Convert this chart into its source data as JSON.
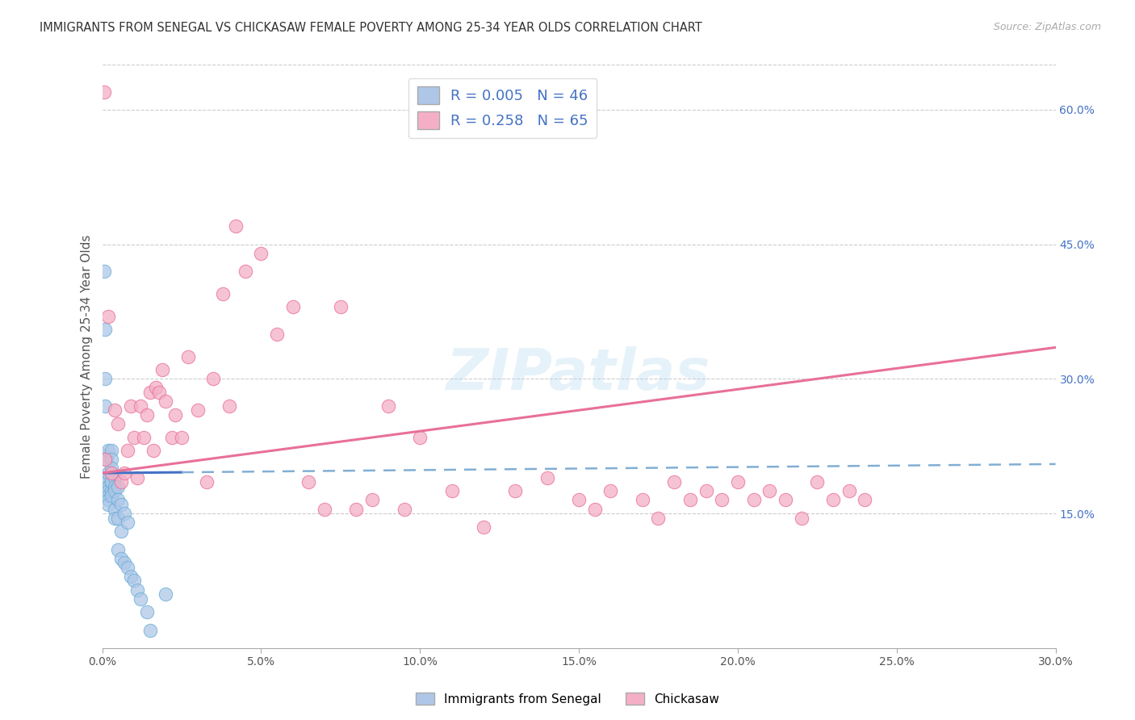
{
  "title": "IMMIGRANTS FROM SENEGAL VS CHICKASAW FEMALE POVERTY AMONG 25-34 YEAR OLDS CORRELATION CHART",
  "source": "Source: ZipAtlas.com",
  "ylabel": "Female Poverty Among 25-34 Year Olds",
  "xlim": [
    0.0,
    0.3
  ],
  "ylim": [
    0.0,
    0.65
  ],
  "xticks": [
    0.0,
    0.05,
    0.1,
    0.15,
    0.2,
    0.25,
    0.3
  ],
  "xtick_labels": [
    "0.0%",
    "5.0%",
    "10.0%",
    "15.0%",
    "20.0%",
    "25.0%",
    "30.0%"
  ],
  "yticks_right": [
    0.15,
    0.3,
    0.45,
    0.6
  ],
  "ytick_labels_right": [
    "15.0%",
    "30.0%",
    "45.0%",
    "60.0%"
  ],
  "grid_color": "#cccccc",
  "background_color": "#ffffff",
  "blue_color": "#6baed6",
  "blue_fill": "#aec7e8",
  "pink_color": "#e87098",
  "pink_fill": "#f4afc6",
  "blue_R": 0.005,
  "blue_N": 46,
  "pink_R": 0.258,
  "pink_N": 65,
  "legend_label_blue": "Immigrants from Senegal",
  "legend_label_pink": "Chickasaw",
  "watermark": "ZIPatlas",
  "blue_scatter_x": [
    0.0005,
    0.001,
    0.001,
    0.001,
    0.001,
    0.001,
    0.0015,
    0.0015,
    0.002,
    0.002,
    0.002,
    0.002,
    0.002,
    0.002,
    0.002,
    0.003,
    0.003,
    0.003,
    0.003,
    0.003,
    0.003,
    0.003,
    0.003,
    0.004,
    0.004,
    0.004,
    0.004,
    0.004,
    0.005,
    0.005,
    0.005,
    0.005,
    0.006,
    0.006,
    0.006,
    0.007,
    0.007,
    0.008,
    0.008,
    0.009,
    0.01,
    0.011,
    0.012,
    0.014,
    0.015,
    0.02
  ],
  "blue_scatter_y": [
    0.42,
    0.355,
    0.3,
    0.27,
    0.215,
    0.185,
    0.185,
    0.21,
    0.22,
    0.195,
    0.18,
    0.175,
    0.17,
    0.165,
    0.16,
    0.22,
    0.21,
    0.195,
    0.185,
    0.175,
    0.17,
    0.2,
    0.185,
    0.19,
    0.18,
    0.175,
    0.155,
    0.145,
    0.18,
    0.165,
    0.145,
    0.11,
    0.16,
    0.13,
    0.1,
    0.15,
    0.095,
    0.14,
    0.09,
    0.08,
    0.075,
    0.065,
    0.055,
    0.04,
    0.02,
    0.06
  ],
  "pink_scatter_x": [
    0.0005,
    0.001,
    0.002,
    0.003,
    0.004,
    0.005,
    0.006,
    0.007,
    0.008,
    0.009,
    0.01,
    0.011,
    0.012,
    0.013,
    0.014,
    0.015,
    0.016,
    0.017,
    0.018,
    0.019,
    0.02,
    0.022,
    0.023,
    0.025,
    0.027,
    0.03,
    0.033,
    0.035,
    0.038,
    0.04,
    0.042,
    0.045,
    0.05,
    0.055,
    0.06,
    0.065,
    0.07,
    0.075,
    0.08,
    0.085,
    0.09,
    0.095,
    0.1,
    0.11,
    0.12,
    0.13,
    0.14,
    0.15,
    0.155,
    0.16,
    0.17,
    0.175,
    0.18,
    0.185,
    0.19,
    0.195,
    0.2,
    0.205,
    0.21,
    0.215,
    0.22,
    0.225,
    0.23,
    0.235,
    0.24
  ],
  "pink_scatter_y": [
    0.62,
    0.21,
    0.37,
    0.195,
    0.265,
    0.25,
    0.185,
    0.195,
    0.22,
    0.27,
    0.235,
    0.19,
    0.27,
    0.235,
    0.26,
    0.285,
    0.22,
    0.29,
    0.285,
    0.31,
    0.275,
    0.235,
    0.26,
    0.235,
    0.325,
    0.265,
    0.185,
    0.3,
    0.395,
    0.27,
    0.47,
    0.42,
    0.44,
    0.35,
    0.38,
    0.185,
    0.155,
    0.38,
    0.155,
    0.165,
    0.27,
    0.155,
    0.235,
    0.175,
    0.135,
    0.175,
    0.19,
    0.165,
    0.155,
    0.175,
    0.165,
    0.145,
    0.185,
    0.165,
    0.175,
    0.165,
    0.185,
    0.165,
    0.175,
    0.165,
    0.145,
    0.185,
    0.165,
    0.175,
    0.165
  ],
  "blue_trendline_x": [
    0.0,
    0.3
  ],
  "blue_trendline_y": [
    0.195,
    0.205
  ],
  "pink_trendline_x": [
    0.0,
    0.3
  ],
  "pink_trendline_y": [
    0.195,
    0.335
  ]
}
